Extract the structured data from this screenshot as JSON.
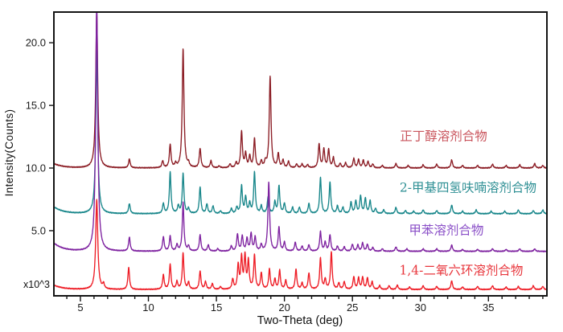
{
  "chart_data": {
    "type": "line",
    "title": "",
    "xlabel": "Two-Theta (deg)",
    "ylabel": "Intensity(Counts)",
    "scale_label": "x10^3",
    "xlim": [
      3.05,
      39.3
    ],
    "ylim": [
      -0.2,
      22.45
    ],
    "x_major_ticks": [
      5,
      10,
      15,
      20,
      25,
      30,
      35
    ],
    "x_minor_tick_step": 1,
    "y_major_ticks": [
      5,
      10,
      15,
      20
    ],
    "y_tick_labels": [
      "5.0",
      "10.0",
      "15.0",
      "20.0"
    ],
    "grid": false,
    "frame_color": "#141414",
    "tick_label_color": "#1a1a1a",
    "peak_shape": "lorentzian",
    "peak_width_default": 0.07,
    "noise_amp": 0.02,
    "series": [
      {
        "name": "n-butanol-solvate",
        "label": "正丁醇溶剂合物",
        "color": "#8B1C24",
        "label_color": "#C9545C",
        "baseline": 10.0,
        "edge_decay": {
          "amp": 0.35,
          "tau": 0.7
        },
        "label_pos": [
          31.7,
          12.2
        ],
        "peaks": [
          [
            6.2,
            12.4,
            0.085
          ],
          [
            8.6,
            0.7
          ],
          [
            11.05,
            0.55
          ],
          [
            11.6,
            1.85
          ],
          [
            12.0,
            0.3
          ],
          [
            12.55,
            9.5,
            0.075
          ],
          [
            12.95,
            0.3
          ],
          [
            13.8,
            1.55
          ],
          [
            14.6,
            0.55
          ],
          [
            15.2,
            0.15
          ],
          [
            16.0,
            0.3
          ],
          [
            16.45,
            0.4
          ],
          [
            16.85,
            2.9
          ],
          [
            17.15,
            1.1
          ],
          [
            17.45,
            0.9
          ],
          [
            17.8,
            2.3
          ],
          [
            18.3,
            0.5
          ],
          [
            18.6,
            0.45
          ],
          [
            18.95,
            7.3,
            0.075
          ],
          [
            19.55,
            1.1
          ],
          [
            19.9,
            0.6
          ],
          [
            20.3,
            0.5
          ],
          [
            20.9,
            0.3
          ],
          [
            21.3,
            0.3
          ],
          [
            21.7,
            0.25
          ],
          [
            22.55,
            1.9
          ],
          [
            22.9,
            1.5
          ],
          [
            23.25,
            1.45
          ],
          [
            23.6,
            0.8
          ],
          [
            24.1,
            0.35
          ],
          [
            24.5,
            0.4
          ],
          [
            25.1,
            0.75
          ],
          [
            25.45,
            0.65
          ],
          [
            25.8,
            0.6
          ],
          [
            26.15,
            0.5
          ],
          [
            26.5,
            0.3
          ],
          [
            27.2,
            0.2
          ],
          [
            28.2,
            0.35
          ],
          [
            29.1,
            0.2
          ],
          [
            30.2,
            0.25
          ],
          [
            31.2,
            0.3
          ],
          [
            32.3,
            0.65
          ],
          [
            33.1,
            0.2
          ],
          [
            34.2,
            0.2
          ],
          [
            35.3,
            0.3
          ],
          [
            36.3,
            0.2
          ],
          [
            37.3,
            0.25
          ],
          [
            38.4,
            0.35
          ],
          [
            39.0,
            0.2
          ]
        ]
      },
      {
        "name": "2-methyl-tetrahydrofuran-solvate",
        "label": "2-甲基四氢呋喃溶剂合物",
        "color": "#17868A",
        "label_color": "#2E8F94",
        "baseline": 6.35,
        "edge_decay": {
          "amp": 0.55,
          "tau": 0.7
        },
        "label_pos": [
          33.5,
          8.1
        ],
        "peaks": [
          [
            6.2,
            13.0,
            0.085
          ],
          [
            8.6,
            0.8
          ],
          [
            11.1,
            0.8
          ],
          [
            11.6,
            3.3
          ],
          [
            12.2,
            0.6
          ],
          [
            12.55,
            3.2
          ],
          [
            12.95,
            0.4
          ],
          [
            13.8,
            2.1
          ],
          [
            14.3,
            0.75
          ],
          [
            14.75,
            0.6
          ],
          [
            15.3,
            0.2
          ],
          [
            16.1,
            0.4
          ],
          [
            16.5,
            0.5
          ],
          [
            16.85,
            2.2
          ],
          [
            17.15,
            1.3
          ],
          [
            17.45,
            0.8
          ],
          [
            17.8,
            3.3
          ],
          [
            18.3,
            0.6
          ],
          [
            18.8,
            1.3
          ],
          [
            19.3,
            0.9
          ],
          [
            19.6,
            2.2
          ],
          [
            20.0,
            0.8
          ],
          [
            20.6,
            0.5
          ],
          [
            21.1,
            0.5
          ],
          [
            21.8,
            0.8
          ],
          [
            22.65,
            2.9
          ],
          [
            23.35,
            2.5
          ],
          [
            23.9,
            0.6
          ],
          [
            24.3,
            0.5
          ],
          [
            24.9,
            0.9
          ],
          [
            25.25,
            1.0
          ],
          [
            25.6,
            1.4
          ],
          [
            25.95,
            1.2
          ],
          [
            26.3,
            1.0
          ],
          [
            26.7,
            0.4
          ],
          [
            27.3,
            0.3
          ],
          [
            28.2,
            0.5
          ],
          [
            28.9,
            0.25
          ],
          [
            29.5,
            0.2
          ],
          [
            30.2,
            0.3
          ],
          [
            31.2,
            0.25
          ],
          [
            32.3,
            0.7
          ],
          [
            33.1,
            0.2
          ],
          [
            34.1,
            0.3
          ],
          [
            35.2,
            0.2
          ],
          [
            36.2,
            0.2
          ],
          [
            37.2,
            0.3
          ],
          [
            38.3,
            0.25
          ],
          [
            39.0,
            0.3
          ]
        ]
      },
      {
        "name": "toluene-solvate",
        "label": "甲苯溶剂合物",
        "color": "#7E22A0",
        "label_color": "#8A4FC7",
        "baseline": 3.35,
        "edge_decay": {
          "amp": 0.65,
          "tau": 0.7
        },
        "label_pos": [
          31.9,
          4.7
        ],
        "peaks": [
          [
            6.2,
            19.8,
            0.09
          ],
          [
            8.6,
            1.1
          ],
          [
            11.1,
            1.15
          ],
          [
            11.6,
            1.2
          ],
          [
            12.1,
            0.5
          ],
          [
            12.55,
            3.9
          ],
          [
            12.95,
            0.4
          ],
          [
            13.8,
            1.3
          ],
          [
            14.4,
            0.5
          ],
          [
            15.1,
            0.2
          ],
          [
            16.1,
            0.4
          ],
          [
            16.55,
            1.35
          ],
          [
            16.9,
            1.2
          ],
          [
            17.25,
            1.0
          ],
          [
            17.55,
            1.4
          ],
          [
            17.85,
            1.1
          ],
          [
            18.3,
            0.5
          ],
          [
            18.85,
            5.5,
            0.075
          ],
          [
            19.6,
            1.9
          ],
          [
            20.0,
            0.7
          ],
          [
            20.8,
            0.7
          ],
          [
            21.3,
            0.4
          ],
          [
            21.8,
            0.5
          ],
          [
            22.65,
            1.55
          ],
          [
            23.0,
            0.7
          ],
          [
            23.35,
            1.3
          ],
          [
            23.9,
            0.4
          ],
          [
            24.4,
            0.35
          ],
          [
            25.0,
            0.55
          ],
          [
            25.4,
            0.5
          ],
          [
            25.75,
            0.65
          ],
          [
            26.1,
            0.55
          ],
          [
            26.5,
            0.3
          ],
          [
            27.2,
            0.2
          ],
          [
            28.2,
            0.35
          ],
          [
            29.0,
            0.2
          ],
          [
            30.2,
            0.2
          ],
          [
            31.2,
            0.2
          ],
          [
            32.3,
            0.5
          ],
          [
            33.1,
            0.15
          ],
          [
            34.2,
            0.15
          ],
          [
            35.3,
            0.2
          ],
          [
            36.3,
            0.15
          ],
          [
            37.3,
            0.2
          ],
          [
            38.4,
            0.2
          ]
        ]
      },
      {
        "name": "1,4-dioxane-solvate",
        "label": "1,4-二氧六环溶剂合物",
        "color": "#EE1C25",
        "label_color": "#E8363C",
        "baseline": 0.3,
        "edge_decay": {
          "amp": 0.35,
          "tau": 0.7
        },
        "label_pos": [
          33.0,
          1.5
        ],
        "peaks": [
          [
            6.2,
            7.2,
            0.09
          ],
          [
            6.7,
            0.4
          ],
          [
            8.55,
            1.75
          ],
          [
            11.1,
            1.15
          ],
          [
            11.6,
            2.0
          ],
          [
            12.1,
            0.6
          ],
          [
            12.55,
            2.9
          ],
          [
            12.95,
            0.55
          ],
          [
            13.8,
            1.45
          ],
          [
            14.2,
            0.6
          ],
          [
            14.7,
            0.45
          ],
          [
            15.3,
            0.2
          ],
          [
            16.2,
            0.8
          ],
          [
            16.6,
            1.9
          ],
          [
            16.85,
            2.5
          ],
          [
            17.1,
            2.6
          ],
          [
            17.35,
            2.2
          ],
          [
            17.8,
            2.7
          ],
          [
            18.3,
            1.3
          ],
          [
            18.9,
            1.6
          ],
          [
            19.3,
            0.8
          ],
          [
            19.65,
            1.5
          ],
          [
            20.1,
            0.7
          ],
          [
            20.85,
            1.6
          ],
          [
            21.3,
            0.5
          ],
          [
            21.8,
            1.3
          ],
          [
            22.65,
            2.5
          ],
          [
            23.0,
            0.8
          ],
          [
            23.45,
            3.0
          ],
          [
            24.0,
            0.5
          ],
          [
            24.4,
            0.6
          ],
          [
            25.1,
            1.0
          ],
          [
            25.45,
            0.9
          ],
          [
            25.75,
            0.95
          ],
          [
            26.1,
            0.9
          ],
          [
            26.45,
            0.6
          ],
          [
            27.0,
            0.3
          ],
          [
            27.7,
            0.3
          ],
          [
            28.3,
            0.35
          ],
          [
            29.2,
            0.2
          ],
          [
            30.2,
            0.3
          ],
          [
            31.2,
            0.25
          ],
          [
            32.3,
            0.7
          ],
          [
            33.1,
            0.2
          ],
          [
            34.2,
            0.25
          ],
          [
            35.3,
            0.3
          ],
          [
            36.3,
            0.2
          ],
          [
            37.2,
            0.25
          ],
          [
            38.3,
            0.3
          ],
          [
            39.0,
            0.25
          ]
        ]
      }
    ]
  }
}
